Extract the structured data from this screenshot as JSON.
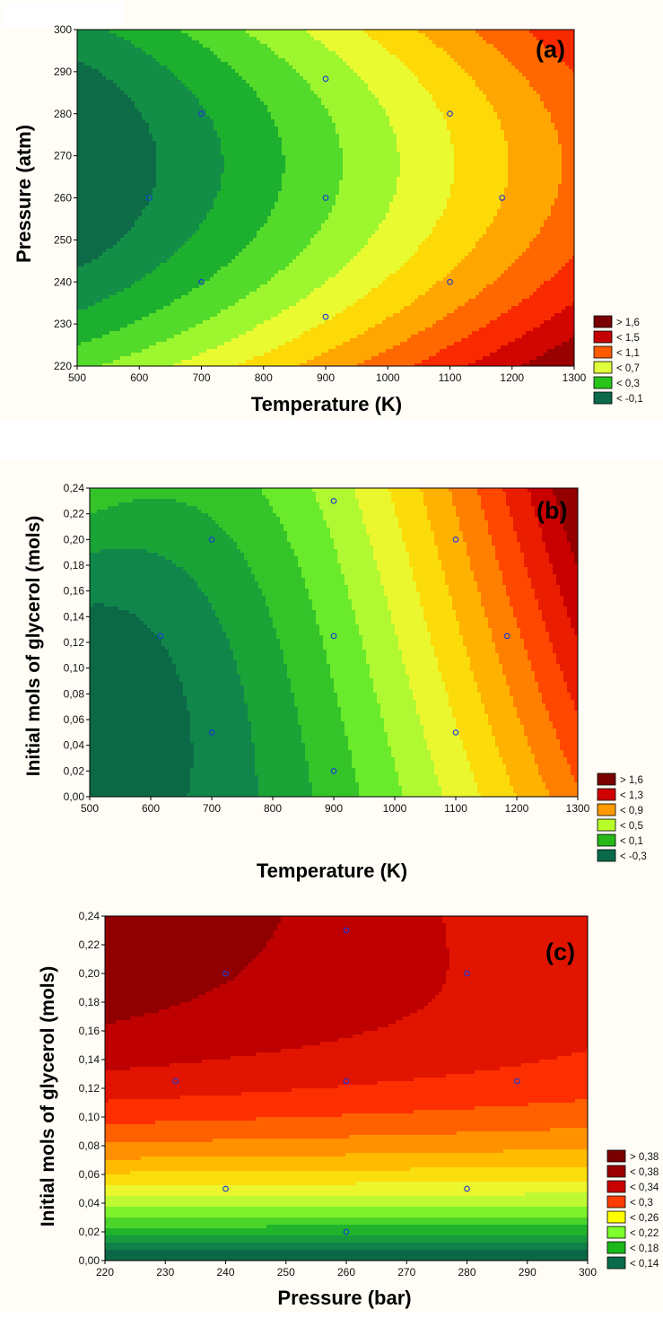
{
  "chart_data": [
    {
      "type": "heatmap",
      "panel_label": "(a)",
      "xlabel": "Temperature (K)",
      "ylabel": "Pressure (atm)",
      "xlim": [
        500,
        1300
      ],
      "ylim": [
        220,
        300
      ],
      "x_ticks": [
        500,
        600,
        700,
        800,
        900,
        1000,
        1100,
        1200,
        1300
      ],
      "y_ticks": [
        220,
        230,
        240,
        250,
        260,
        270,
        280,
        290,
        300
      ],
      "x_tick_labels": [
        "500",
        "600",
        "700",
        "800",
        "900",
        "1000",
        "1100",
        "1200",
        "1300"
      ],
      "y_tick_labels": [
        "220",
        "230",
        "240",
        "250",
        "260",
        "270",
        "280",
        "290",
        "300"
      ],
      "legend": [
        {
          "label": "> 1,6",
          "color": "#7a0000"
        },
        {
          "label": "< 1,5",
          "color": "#c40000"
        },
        {
          "label": "< 1,1",
          "color": "#ff5a00"
        },
        {
          "label": "< 0,7",
          "color": "#e0ff3a"
        },
        {
          "label": "< 0,3",
          "color": "#28c41a"
        },
        {
          "label": "< -0,1",
          "color": "#0a6a4a"
        }
      ],
      "design_points": [
        {
          "x": 900,
          "y": 288.3
        },
        {
          "x": 700,
          "y": 280
        },
        {
          "x": 1100,
          "y": 280
        },
        {
          "x": 616,
          "y": 260
        },
        {
          "x": 900,
          "y": 260
        },
        {
          "x": 1184,
          "y": 260
        },
        {
          "x": 700,
          "y": 240
        },
        {
          "x": 1100,
          "y": 240
        },
        {
          "x": 900,
          "y": 231.7
        }
      ]
    },
    {
      "type": "heatmap",
      "panel_label": "(b)",
      "xlabel": "Temperature (K)",
      "ylabel": "Initial mols of glycerol (mols)",
      "xlim": [
        500,
        1300
      ],
      "ylim": [
        0,
        0.24
      ],
      "x_ticks": [
        500,
        600,
        700,
        800,
        900,
        1000,
        1100,
        1200,
        1300
      ],
      "y_ticks": [
        0,
        0.02,
        0.04,
        0.06,
        0.08,
        0.1,
        0.12,
        0.14,
        0.16,
        0.18,
        0.2,
        0.22,
        0.24
      ],
      "x_tick_labels": [
        "500",
        "600",
        "700",
        "800",
        "900",
        "1000",
        "1100",
        "1200",
        "1300"
      ],
      "y_tick_labels": [
        "0,00",
        "0,02",
        "0,04",
        "0,06",
        "0,08",
        "0,10",
        "0,12",
        "0,14",
        "0,16",
        "0,18",
        "0,20",
        "0,22",
        "0,24"
      ],
      "legend": [
        {
          "label": "> 1,6",
          "color": "#7a0000"
        },
        {
          "label": "< 1,3",
          "color": "#d00000"
        },
        {
          "label": "< 0,9",
          "color": "#ff9a00"
        },
        {
          "label": "< 0,5",
          "color": "#b8ff2a"
        },
        {
          "label": "< 0,1",
          "color": "#28b81a"
        },
        {
          "label": "< -0,3",
          "color": "#0a6a4a"
        }
      ],
      "design_points": [
        {
          "x": 900,
          "y": 0.23
        },
        {
          "x": 700,
          "y": 0.2
        },
        {
          "x": 1100,
          "y": 0.2
        },
        {
          "x": 616,
          "y": 0.125
        },
        {
          "x": 900,
          "y": 0.125
        },
        {
          "x": 1184,
          "y": 0.125
        },
        {
          "x": 700,
          "y": 0.05
        },
        {
          "x": 1100,
          "y": 0.05
        },
        {
          "x": 900,
          "y": 0.02
        }
      ]
    },
    {
      "type": "heatmap",
      "panel_label": "(c)",
      "xlabel": "Pressure (bar)",
      "ylabel": "Initial mols of glycerol (mols)",
      "xlim": [
        220,
        300
      ],
      "ylim": [
        0,
        0.24
      ],
      "x_ticks": [
        220,
        230,
        240,
        250,
        260,
        270,
        280,
        290,
        300
      ],
      "y_ticks": [
        0,
        0.02,
        0.04,
        0.06,
        0.08,
        0.1,
        0.12,
        0.14,
        0.16,
        0.18,
        0.2,
        0.22,
        0.24
      ],
      "x_tick_labels": [
        "220",
        "230",
        "240",
        "250",
        "260",
        "270",
        "280",
        "290",
        "300"
      ],
      "y_tick_labels": [
        "0,00",
        "0,02",
        "0,04",
        "0,06",
        "0,08",
        "0,10",
        "0,12",
        "0,14",
        "0,16",
        "0,18",
        "0,20",
        "0,22",
        "0,24"
      ],
      "legend": [
        {
          "label": "> 0,38",
          "color": "#7a0000"
        },
        {
          "label": "< 0,38",
          "color": "#9a0000"
        },
        {
          "label": "< 0,34",
          "color": "#c80000"
        },
        {
          "label": "< 0,3",
          "color": "#ff3c00"
        },
        {
          "label": "< 0,26",
          "color": "#ffff00"
        },
        {
          "label": "< 0,22",
          "color": "#7cff2a"
        },
        {
          "label": "< 0,18",
          "color": "#1ab81a"
        },
        {
          "label": "< 0,14",
          "color": "#0a6a4a"
        }
      ],
      "design_points": [
        {
          "x": 260,
          "y": 0.23
        },
        {
          "x": 240,
          "y": 0.2
        },
        {
          "x": 280,
          "y": 0.2
        },
        {
          "x": 231.7,
          "y": 0.125
        },
        {
          "x": 260,
          "y": 0.125
        },
        {
          "x": 288.3,
          "y": 0.125
        },
        {
          "x": 240,
          "y": 0.05
        },
        {
          "x": 280,
          "y": 0.05
        },
        {
          "x": 260,
          "y": 0.02
        }
      ]
    }
  ]
}
